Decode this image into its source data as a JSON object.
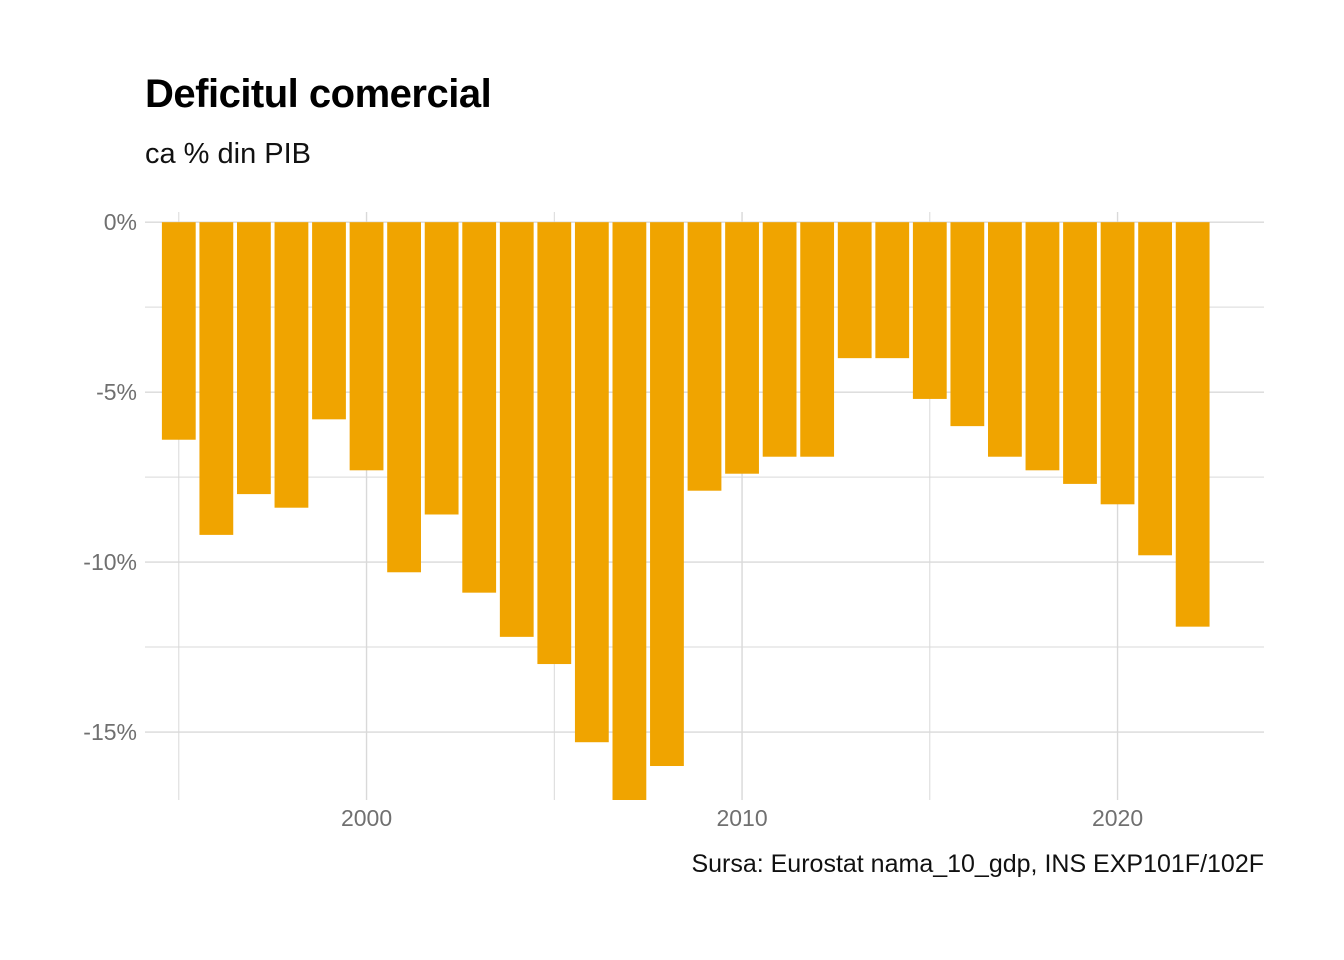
{
  "chart_data": {
    "type": "bar",
    "title": "Deficitul comercial",
    "subtitle": "ca % din PIB",
    "caption": "Sursa: Eurostat nama_10_gdp, INS EXP101F/102F",
    "xlabel": "",
    "ylabel": "",
    "x": [
      1995,
      1996,
      1997,
      1998,
      1999,
      2000,
      2001,
      2002,
      2003,
      2004,
      2005,
      2006,
      2007,
      2008,
      2009,
      2010,
      2011,
      2012,
      2013,
      2014,
      2015,
      2016,
      2017,
      2018,
      2019,
      2020,
      2021,
      2022
    ],
    "values": [
      -6.4,
      -9.2,
      -8.0,
      -8.4,
      -5.8,
      -7.3,
      -10.3,
      -8.6,
      -10.9,
      -12.2,
      -13.0,
      -15.3,
      -17.0,
      -16.0,
      -7.9,
      -7.4,
      -6.9,
      -6.9,
      -4.0,
      -4.0,
      -5.2,
      -6.0,
      -6.9,
      -7.3,
      -7.7,
      -8.3,
      -9.8,
      -11.9
    ],
    "ylim": [
      -17.0,
      0.3
    ],
    "xlim": [
      1994.1,
      2023.9
    ],
    "yticks": [
      0,
      -5,
      -10,
      -15
    ],
    "ytick_labels": [
      "0%",
      "-5%",
      "-10%",
      "-15%"
    ],
    "xticks": [
      2000,
      2010,
      2020
    ],
    "xtick_labels": [
      "2000",
      "2010",
      "2020"
    ],
    "grid": true,
    "legend": "none",
    "bar_color": "#F0A400",
    "grid_color": "#d9d9d9"
  }
}
